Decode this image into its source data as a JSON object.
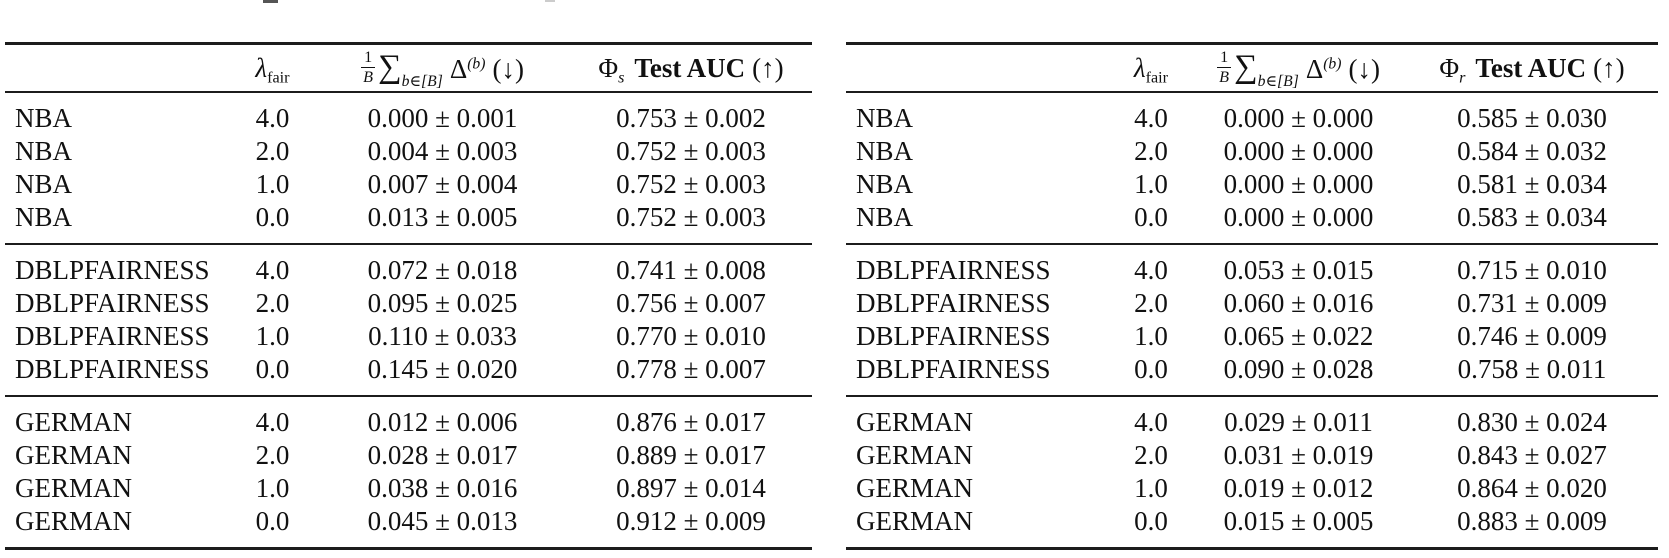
{
  "header": {
    "lambda_symbol": "λ",
    "lambda_sub": "fair",
    "frac_num": "1",
    "frac_den": "B",
    "sum_symbol": "∑",
    "sum_sub": "b∈[B]",
    "delta_symbol": "Δ",
    "delta_sup": "(b)",
    "down_arrow": "(↓)",
    "phi_symbol": "Φ",
    "auc_bold": "Test AUC",
    "up_arrow": "(↑)"
  },
  "tables": [
    {
      "name": "phi-s-table",
      "phi_sub": "s",
      "groups": [
        {
          "rows": [
            {
              "dataset": "NBA",
              "lambda_fair": "4.0",
              "delta": "0.000 ± 0.001",
              "test_auc": "0.753 ± 0.002"
            },
            {
              "dataset": "NBA",
              "lambda_fair": "2.0",
              "delta": "0.004 ± 0.003",
              "test_auc": "0.752 ± 0.003"
            },
            {
              "dataset": "NBA",
              "lambda_fair": "1.0",
              "delta": "0.007 ± 0.004",
              "test_auc": "0.752 ± 0.003"
            },
            {
              "dataset": "NBA",
              "lambda_fair": "0.0",
              "delta": "0.013 ± 0.005",
              "test_auc": "0.752 ± 0.003"
            }
          ]
        },
        {
          "rows": [
            {
              "dataset": "DBLPFAIRNESS",
              "lambda_fair": "4.0",
              "delta": "0.072 ± 0.018",
              "test_auc": "0.741 ± 0.008"
            },
            {
              "dataset": "DBLPFAIRNESS",
              "lambda_fair": "2.0",
              "delta": "0.095 ± 0.025",
              "test_auc": "0.756 ± 0.007"
            },
            {
              "dataset": "DBLPFAIRNESS",
              "lambda_fair": "1.0",
              "delta": "0.110 ± 0.033",
              "test_auc": "0.770 ± 0.010"
            },
            {
              "dataset": "DBLPFAIRNESS",
              "lambda_fair": "0.0",
              "delta": "0.145 ± 0.020",
              "test_auc": "0.778 ± 0.007"
            }
          ]
        },
        {
          "rows": [
            {
              "dataset": "GERMAN",
              "lambda_fair": "4.0",
              "delta": "0.012 ± 0.006",
              "test_auc": "0.876 ± 0.017"
            },
            {
              "dataset": "GERMAN",
              "lambda_fair": "2.0",
              "delta": "0.028 ± 0.017",
              "test_auc": "0.889 ± 0.017"
            },
            {
              "dataset": "GERMAN",
              "lambda_fair": "1.0",
              "delta": "0.038 ± 0.016",
              "test_auc": "0.897 ± 0.014"
            },
            {
              "dataset": "GERMAN",
              "lambda_fair": "0.0",
              "delta": "0.045 ± 0.013",
              "test_auc": "0.912 ± 0.009"
            }
          ]
        }
      ]
    },
    {
      "name": "phi-r-table",
      "phi_sub": "r",
      "groups": [
        {
          "rows": [
            {
              "dataset": "NBA",
              "lambda_fair": "4.0",
              "delta": "0.000 ± 0.000",
              "test_auc": "0.585 ± 0.030"
            },
            {
              "dataset": "NBA",
              "lambda_fair": "2.0",
              "delta": "0.000 ± 0.000",
              "test_auc": "0.584 ± 0.032"
            },
            {
              "dataset": "NBA",
              "lambda_fair": "1.0",
              "delta": "0.000 ± 0.000",
              "test_auc": "0.581 ± 0.034"
            },
            {
              "dataset": "NBA",
              "lambda_fair": "0.0",
              "delta": "0.000 ± 0.000",
              "test_auc": "0.583 ± 0.034"
            }
          ]
        },
        {
          "rows": [
            {
              "dataset": "DBLPFAIRNESS",
              "lambda_fair": "4.0",
              "delta": "0.053 ± 0.015",
              "test_auc": "0.715 ± 0.010"
            },
            {
              "dataset": "DBLPFAIRNESS",
              "lambda_fair": "2.0",
              "delta": "0.060 ± 0.016",
              "test_auc": "0.731 ± 0.009"
            },
            {
              "dataset": "DBLPFAIRNESS",
              "lambda_fair": "1.0",
              "delta": "0.065 ± 0.022",
              "test_auc": "0.746 ± 0.009"
            },
            {
              "dataset": "DBLPFAIRNESS",
              "lambda_fair": "0.0",
              "delta": "0.090 ± 0.028",
              "test_auc": "0.758 ± 0.011"
            }
          ]
        },
        {
          "rows": [
            {
              "dataset": "GERMAN",
              "lambda_fair": "4.0",
              "delta": "0.029 ± 0.011",
              "test_auc": "0.830 ± 0.024"
            },
            {
              "dataset": "GERMAN",
              "lambda_fair": "2.0",
              "delta": "0.031 ± 0.019",
              "test_auc": "0.843 ± 0.027"
            },
            {
              "dataset": "GERMAN",
              "lambda_fair": "1.0",
              "delta": "0.019 ± 0.012",
              "test_auc": "0.864 ± 0.020"
            },
            {
              "dataset": "GERMAN",
              "lambda_fair": "0.0",
              "delta": "0.015 ± 0.005",
              "test_auc": "0.883 ± 0.009"
            }
          ]
        }
      ]
    }
  ]
}
